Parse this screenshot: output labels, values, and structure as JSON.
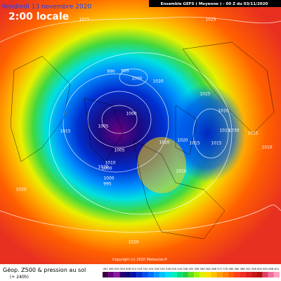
{
  "header": {
    "date": "Vendredi 13 novembre 2020",
    "time": "2:00 locale",
    "run": "Ensemble GEFS ( Moyenne ) - 00 Z du 03/11/2020"
  },
  "footer": {
    "field": "Géop. Z500 & pression au sol",
    "lead": "(+ 240h)",
    "copyright": "Copyright (c) 2020 Meteociel.fr"
  },
  "isobar_labels": [
    "1025",
    "1025",
    "990",
    "995",
    "1000",
    "1020",
    "1025",
    "1010",
    "1000",
    "1005",
    "1015",
    "1005",
    "1010",
    "1020",
    "1015",
    "1015",
    "1000",
    "1000",
    "995",
    "1020",
    "1015",
    "1010",
    "1030",
    "1020",
    "1015",
    "1010",
    "1020",
    "1020"
  ],
  "scale": {
    "labels": [
      "492",
      "496",
      "500",
      "504",
      "508",
      "512",
      "516",
      "520",
      "524",
      "528",
      "532",
      "536",
      "540",
      "544",
      "548",
      "552",
      "556",
      "560",
      "564",
      "568",
      "572",
      "576",
      "580",
      "584",
      "588",
      "592",
      "596",
      "600",
      "604",
      "608",
      "612"
    ],
    "colors": [
      "#3a0040",
      "#6a0080",
      "#8a1ca0",
      "#2a0070",
      "#0a0a80",
      "#0010b0",
      "#0030d0",
      "#0050e8",
      "#0070ff",
      "#0098ff",
      "#00c0ff",
      "#00e0f0",
      "#00f0c0",
      "#00e080",
      "#20d040",
      "#60e020",
      "#a0f000",
      "#e0f000",
      "#ffe000",
      "#ffc000",
      "#ffa000",
      "#ff8000",
      "#ff6000",
      "#ff4020",
      "#f03020",
      "#e02020",
      "#c81818",
      "#b01010",
      "#e04060",
      "#f070a0",
      "#ffa0c0"
    ]
  }
}
